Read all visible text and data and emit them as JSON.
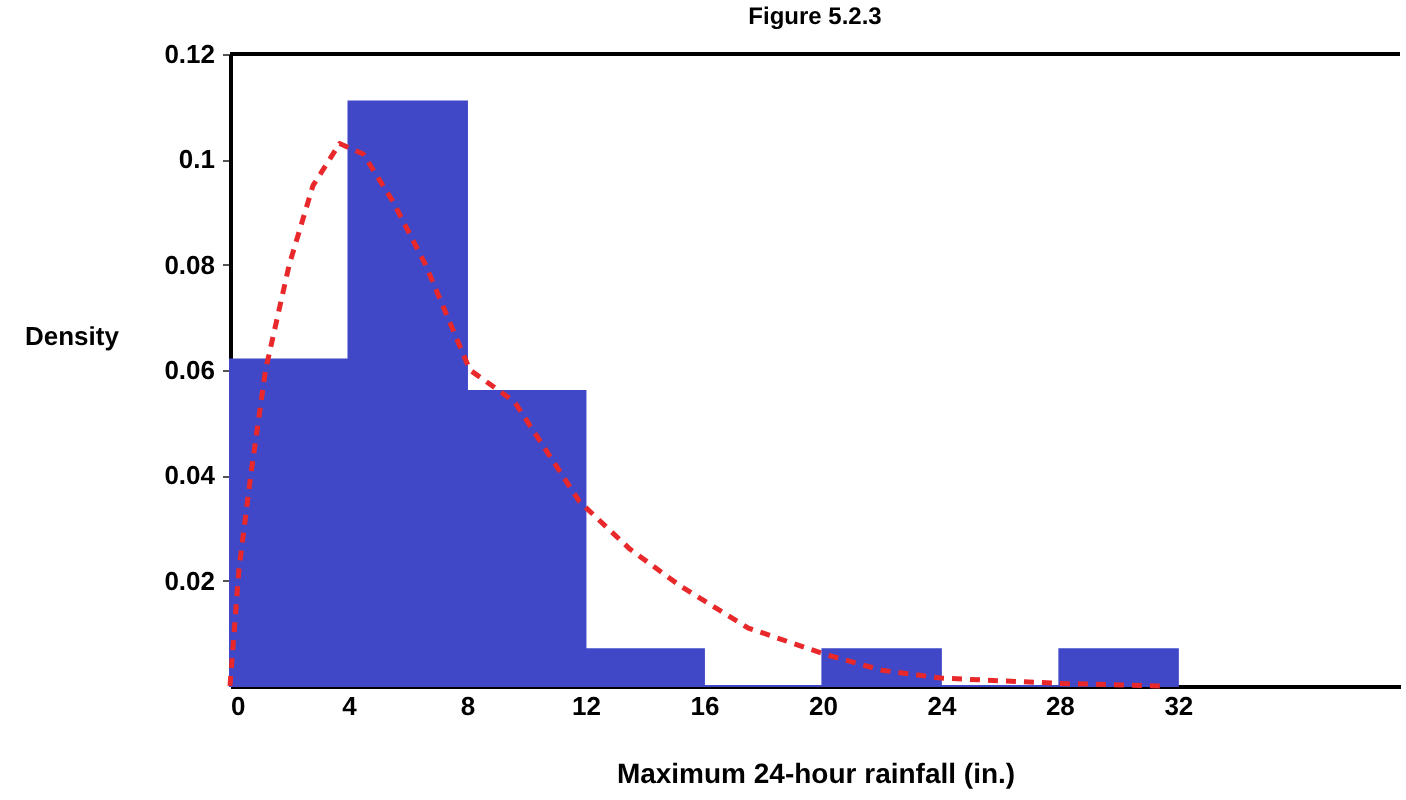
{
  "chart_data": {
    "type": "histogram",
    "title": "Figure 5.2.3",
    "xlabel": "Maximum 24-hour rainfall (in.)",
    "ylabel": "Density",
    "bins": [
      0,
      4,
      8,
      12,
      16,
      20,
      24,
      28,
      32
    ],
    "values": [
      0.062,
      0.111,
      0.056,
      0.007,
      0,
      0.007,
      0,
      0.007
    ],
    "color": "#4048c8",
    "series": [
      {
        "type": "line",
        "color": "#e8282a",
        "line_style": "dashed",
        "x": [
          0,
          0.3,
          0.7,
          1.2,
          2.0,
          2.8,
          3.7,
          4.5,
          5.5,
          6.6,
          8.1,
          9.6,
          11.8,
          13.5,
          15.2,
          17.5,
          20.1,
          22,
          24,
          28,
          31.5
        ],
        "values": [
          0,
          0.022,
          0.04,
          0.06,
          0.08,
          0.095,
          0.103,
          0.101,
          0.092,
          0.08,
          0.06,
          0.054,
          0.035,
          0.026,
          0.019,
          0.011,
          0.006,
          0.003,
          0.0015,
          0.0005,
          0
        ]
      }
    ],
    "xlim": [
      0,
      39.5
    ],
    "ylim": [
      0,
      0.12
    ],
    "xticks": [
      0,
      4,
      8,
      12,
      16,
      20,
      24,
      28,
      32
    ],
    "yticks": [
      0.02,
      0.04,
      0.06,
      0.08,
      {
        "value": 0.1,
        "label": "0.1"
      },
      0.12
    ]
  }
}
